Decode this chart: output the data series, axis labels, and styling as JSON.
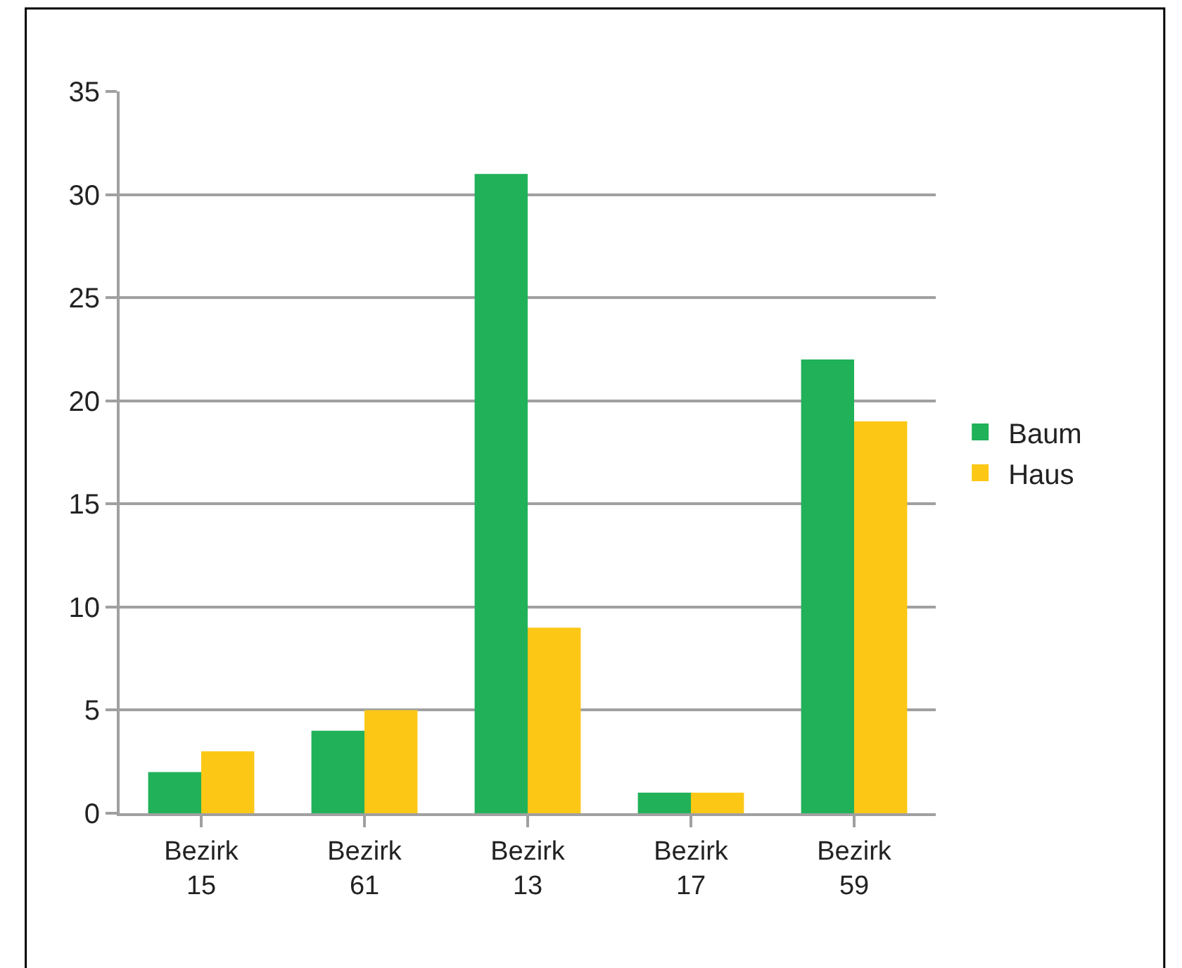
{
  "chart_data": {
    "type": "bar",
    "categories": [
      "Bezirk 15",
      "Bezirk 61",
      "Bezirk 13",
      "Bezirk 17",
      "Bezirk 59"
    ],
    "series": [
      {
        "name": "Baum",
        "color": "#21b159",
        "values": [
          2,
          4,
          31,
          1,
          22
        ]
      },
      {
        "name": "Haus",
        "color": "#fdc716",
        "values": [
          3,
          5,
          9,
          1,
          19
        ]
      }
    ],
    "ylim": [
      0,
      35
    ],
    "yticks": [
      0,
      5,
      10,
      15,
      20,
      25,
      30,
      35
    ],
    "grid": "y",
    "legend": "right"
  }
}
